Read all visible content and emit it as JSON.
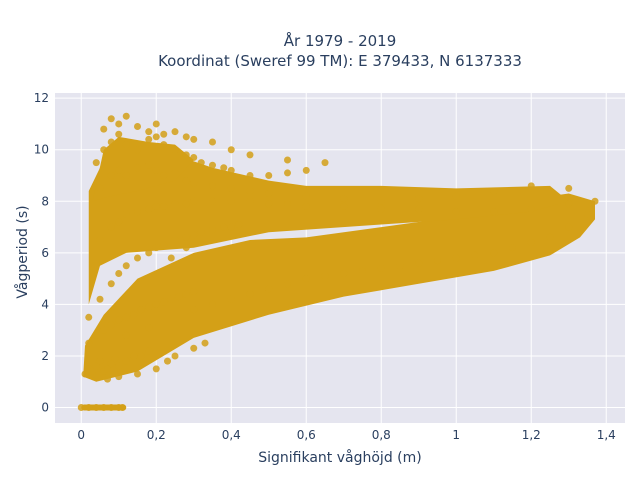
{
  "chart_data": {
    "type": "scatter",
    "title_lines": [
      "År 1979 - 2019",
      "Koordinat (Sweref 99 TM): E 379433, N 6137333"
    ],
    "xlabel": "Signifikant våghöjd (m)",
    "ylabel": "Vågperiod (s)",
    "xlim": [
      -0.07,
      1.45
    ],
    "ylim": [
      -0.6,
      12.2
    ],
    "x_ticks": [
      0,
      0.2,
      0.4,
      0.6,
      0.8,
      1,
      1.2,
      1.4
    ],
    "x_tick_labels": [
      "0",
      "0,2",
      "0,4",
      "0,6",
      "0,8",
      "1",
      "1,2",
      "1,4"
    ],
    "y_ticks": [
      0,
      2,
      4,
      6,
      8,
      10,
      12
    ],
    "y_tick_labels": [
      "0",
      "2",
      "4",
      "6",
      "8",
      "10",
      "12"
    ],
    "grid": true,
    "legend": "none",
    "marker_color": "#D4A017",
    "plot_bg_color": "#E5E5EF",
    "series": [
      {
        "x": [
          0.0,
          0.02,
          0.04,
          0.06,
          0.08,
          0.1,
          0.11,
          0.01,
          0.02,
          0.03,
          0.04,
          0.05,
          0.06,
          0.07,
          0.08,
          0.09,
          0.1,
          0.12,
          0.14,
          0.16,
          0.18,
          0.02,
          0.04,
          0.06,
          0.08,
          0.1,
          0.12,
          0.14,
          0.16,
          0.18,
          0.2,
          0.22,
          0.24,
          0.26,
          0.28,
          0.3,
          0.02,
          0.05,
          0.08,
          0.1,
          0.12,
          0.15,
          0.18,
          0.2,
          0.22,
          0.25,
          0.28,
          0.3,
          0.32,
          0.35,
          0.38,
          0.4,
          0.42,
          0.3,
          0.35,
          0.4,
          0.45,
          0.5,
          0.55,
          0.6,
          0.65,
          0.7,
          0.75,
          0.8,
          0.85,
          0.9,
          0.95,
          1.0,
          1.05,
          1.1,
          1.15,
          1.2,
          1.25,
          1.3,
          1.35,
          0.05,
          0.08,
          0.1,
          0.12,
          0.15,
          0.18,
          0.2,
          0.22,
          0.25,
          0.28,
          0.3,
          0.35,
          0.4,
          0.45,
          0.5,
          0.55,
          0.6,
          0.7,
          0.8,
          0.9,
          1.0,
          1.1,
          1.2,
          1.3,
          1.37,
          0.05,
          0.08,
          0.1,
          0.12,
          0.15,
          0.18,
          0.2,
          0.22,
          0.25,
          0.28,
          0.3,
          0.35,
          0.4,
          0.45,
          0.5,
          0.6,
          0.7,
          0.8,
          0.9,
          1.0,
          1.1,
          1.2,
          1.3,
          0.04,
          0.06,
          0.08,
          0.1,
          0.12,
          0.15,
          0.18,
          0.2,
          0.22,
          0.25,
          0.28,
          0.3,
          0.32,
          0.35,
          0.38,
          0.4,
          0.45,
          0.5,
          0.55,
          0.6,
          0.06,
          0.08,
          0.1,
          0.12,
          0.15,
          0.18,
          0.2,
          0.22,
          0.25,
          0.28,
          0.3,
          0.35,
          0.4,
          0.45,
          0.55,
          0.65,
          0.07,
          0.1,
          0.15,
          0.2,
          0.23,
          0.25,
          0.3,
          0.33,
          0.12,
          0.18,
          0.24,
          0.28
        ],
        "y": [
          0,
          0,
          0,
          0,
          0,
          0,
          0,
          1.3,
          1.5,
          1.4,
          1.6,
          1.8,
          1.4,
          1.5,
          1.7,
          1.9,
          1.6,
          1.8,
          2.0,
          2.0,
          2.2,
          2.5,
          2.8,
          3.0,
          3.2,
          3.4,
          3.5,
          3.6,
          3.8,
          3.9,
          4.0,
          4.1,
          4.2,
          4.3,
          4.4,
          4.5,
          3.5,
          4.2,
          4.8,
          5.2,
          5.5,
          5.8,
          6.0,
          6.2,
          6.3,
          6.5,
          6.6,
          6.7,
          6.8,
          6.9,
          7.0,
          7.0,
          7.1,
          3.8,
          4.0,
          4.2,
          4.4,
          4.6,
          4.8,
          5.0,
          5.1,
          5.2,
          5.3,
          5.4,
          5.5,
          5.6,
          5.7,
          5.8,
          5.9,
          6.0,
          6.2,
          6.4,
          6.6,
          7.0,
          7.5,
          6.5,
          7.0,
          7.2,
          7.5,
          7.6,
          7.7,
          7.8,
          7.8,
          7.9,
          7.9,
          8.0,
          8.0,
          8.0,
          8.0,
          7.9,
          7.9,
          7.8,
          7.8,
          7.7,
          7.7,
          7.6,
          7.6,
          7.7,
          7.9,
          8.0,
          8.5,
          9.0,
          9.2,
          9.0,
          9.3,
          9.4,
          9.2,
          9.0,
          9.1,
          8.8,
          8.7,
          8.6,
          8.5,
          8.4,
          8.3,
          8.2,
          8.1,
          8.0,
          8.1,
          8.2,
          8.4,
          8.6,
          8.5,
          9.5,
          10.0,
          10.3,
          10.6,
          10.2,
          10.0,
          10.4,
          10.5,
          10.2,
          10.0,
          9.8,
          9.7,
          9.5,
          9.4,
          9.3,
          9.2,
          9.0,
          9.0,
          9.1,
          9.2,
          10.8,
          11.2,
          11.0,
          11.3,
          10.9,
          10.7,
          11.0,
          10.6,
          10.7,
          10.5,
          10.4,
          10.3,
          10.0,
          9.8,
          9.6,
          9.5,
          1.1,
          1.2,
          1.3,
          1.5,
          1.8,
          2.0,
          2.3,
          2.5,
          2.8,
          3.1,
          5.8,
          6.2
        ]
      }
    ]
  }
}
